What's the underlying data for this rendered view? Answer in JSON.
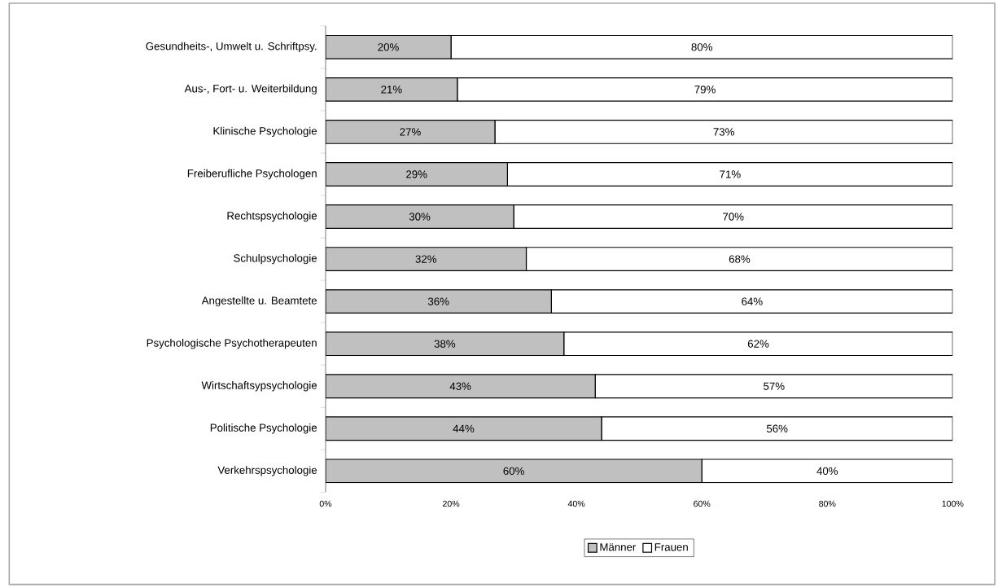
{
  "chart_data": {
    "type": "bar",
    "orientation": "horizontal",
    "stacked": true,
    "categories": [
      "Gesundheits-, Umwelt u. Schriftpsy.",
      "Aus-, Fort- u. Weiterbildung",
      "Klinische Psychologie",
      "Freiberufliche Psychologen",
      "Rechtspsychologie",
      "Schulpsychologie",
      "Angestellte u. Beamtete",
      "Psychologische Psychotherapeuten",
      "Wirtschaftsypsychologie",
      "Politische Psychologie",
      "Verkehrspsychologie"
    ],
    "series": [
      {
        "name": "Männer",
        "color": "#c0c0c0",
        "values": [
          20,
          21,
          27,
          29,
          30,
          32,
          36,
          38,
          43,
          44,
          60
        ],
        "value_labels": [
          "20%",
          "21%",
          "27%",
          "29%",
          "30%",
          "32%",
          "36%",
          "38%",
          "43%",
          "44%",
          "60%"
        ]
      },
      {
        "name": "Frauen",
        "color": "#ffffff",
        "values": [
          80,
          79,
          73,
          71,
          70,
          68,
          64,
          62,
          57,
          56,
          40
        ],
        "value_labels": [
          "80%",
          "79%",
          "73%",
          "71%",
          "70%",
          "68%",
          "64%",
          "62%",
          "57%",
          "56%",
          "40%"
        ]
      }
    ],
    "xlim": [
      0,
      100
    ],
    "xticks": [
      {
        "value": 0,
        "label": "0%"
      },
      {
        "value": 20,
        "label": "20%"
      },
      {
        "value": 40,
        "label": "40%"
      },
      {
        "value": 60,
        "label": "60%"
      },
      {
        "value": 80,
        "label": "80%"
      },
      {
        "value": 100,
        "label": "100%"
      }
    ],
    "grid": false,
    "legend": "bottom"
  }
}
